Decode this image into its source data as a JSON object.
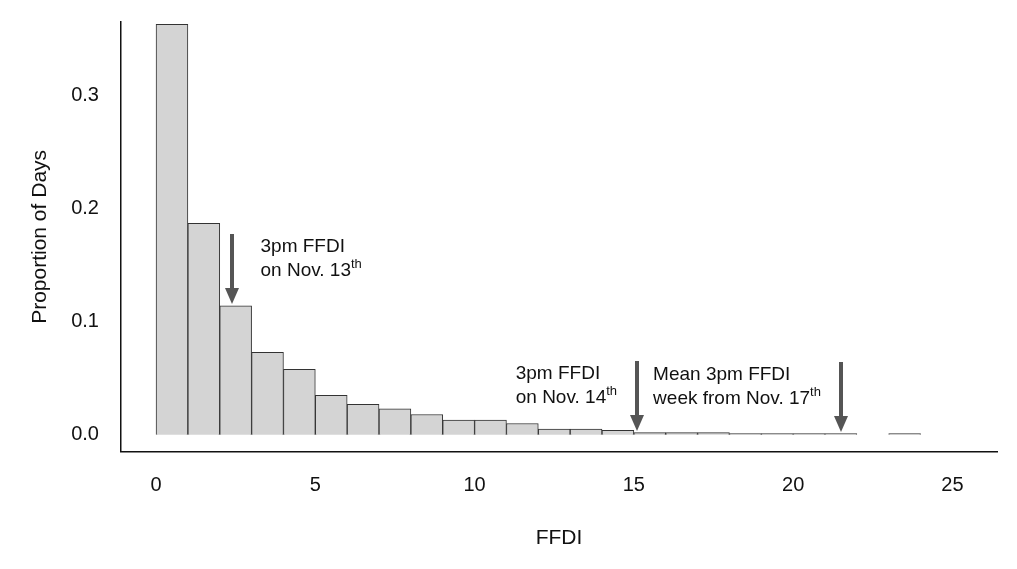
{
  "chart_data": {
    "type": "histogram",
    "xlabel": "FFDI",
    "ylabel": "Proportion of Days",
    "bins": [
      0,
      1,
      2,
      3,
      4,
      5,
      6,
      7,
      8,
      9,
      10,
      11,
      12,
      13,
      14,
      15,
      16,
      17,
      18,
      19,
      20,
      21,
      22,
      23,
      24,
      25,
      26
    ],
    "values": [
      0.363,
      0.187,
      0.114,
      0.073,
      0.058,
      0.035,
      0.027,
      0.023,
      0.018,
      0.013,
      0.013,
      0.01,
      0.005,
      0.005,
      0.004,
      0.002,
      0.002,
      0.002,
      0.001,
      0.001,
      0.001,
      0.001,
      0,
      0.001,
      0,
      0
    ],
    "color": "#d4d4d4",
    "xlim": [
      -1.1,
      26.4
    ],
    "xticks": [
      0,
      5,
      10,
      15,
      20,
      25
    ],
    "ylim": [
      -0.015,
      0.365
    ],
    "yticks": [
      {
        "value": 0,
        "label": "0.0"
      },
      0.1,
      0.2,
      0.3
    ],
    "grid": false,
    "legend": false,
    "annotations": [
      {
        "text": "3pm FFDI\non Nov. 13$^{th}$",
        "x": 2.4,
        "y": 0.114
      },
      {
        "text": "3pm FFDI\non Nov. 14$^{th}$",
        "x": 15.1,
        "y": 0.002
      },
      {
        "text": "Mean 3pm FFDI\nweek from Nov. 17$^{th}$",
        "x": 21.5,
        "y": 0.001
      }
    ]
  }
}
